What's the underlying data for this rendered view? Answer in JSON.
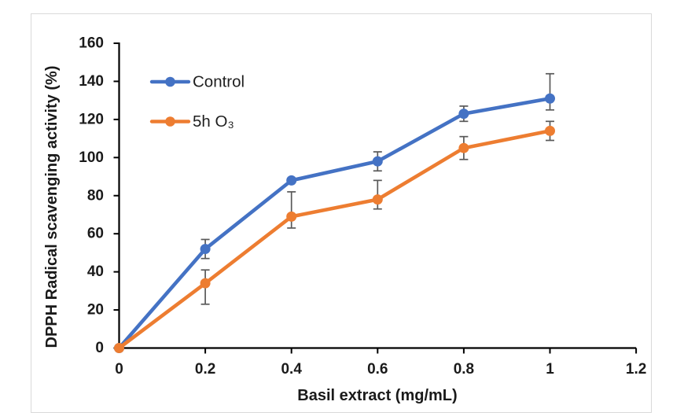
{
  "figure": {
    "background": "#ffffff",
    "border_color": "#d9d9d9"
  },
  "chart_data": {
    "type": "line",
    "title": "",
    "xlabel": "Basil extract (mg/mL)",
    "ylabel": "DPPH Radical scavenging activity (%)",
    "x": [
      0,
      0.2,
      0.4,
      0.6,
      0.8,
      1
    ],
    "series": [
      {
        "name": "Control",
        "color": "#4472C4",
        "values": [
          0,
          52,
          88,
          98,
          123,
          131
        ],
        "error_plus": [
          0,
          5,
          0,
          5,
          4,
          13
        ],
        "error_minus": [
          0,
          5,
          0,
          5,
          4,
          6
        ]
      },
      {
        "name": "5h O₃",
        "color": "#ED7D31",
        "values": [
          0,
          34,
          69,
          78,
          105,
          114
        ],
        "error_plus": [
          0,
          7,
          13,
          10,
          6,
          5
        ],
        "error_minus": [
          0,
          11,
          6,
          5,
          6,
          5
        ]
      }
    ],
    "xlim": [
      0,
      1.2
    ],
    "ylim": [
      0,
      160
    ],
    "x_ticks": [
      "0",
      "0.2",
      "0.4",
      "0.6",
      "0.8",
      "1",
      "1.2"
    ],
    "x_tick_values": [
      0,
      0.2,
      0.4,
      0.6,
      0.8,
      1,
      1.2
    ],
    "y_ticks": [
      "0",
      "20",
      "40",
      "60",
      "80",
      "100",
      "120",
      "140",
      "160"
    ],
    "y_tick_values": [
      0,
      20,
      40,
      60,
      80,
      100,
      120,
      140,
      160
    ],
    "grid": false,
    "legend_position": "inside-top-left",
    "legend_entries": [
      "Control",
      "5h O₃"
    ],
    "axis_color": "#000000",
    "tick_label_color": "#1a1a1a",
    "error_bar_color": "#595959",
    "legend_text_color": "#1f1f1f"
  }
}
